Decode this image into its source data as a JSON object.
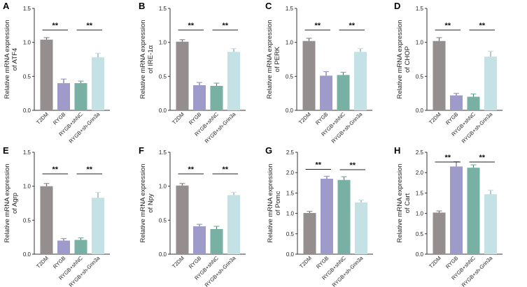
{
  "figure": {
    "categories": [
      "T2DM",
      "RYGB",
      "RYGB+shNC",
      "RYGB+sh-Grin3a"
    ],
    "colors": [
      "#958e8e",
      "#9e9bcb",
      "#78b0a4",
      "#c4e2e5"
    ],
    "significance_label": "**"
  },
  "chart_data": [
    {
      "panel": "A",
      "type": "bar",
      "ylabel": [
        "Relative mRNA expression",
        "of ATF4"
      ],
      "ylim": [
        0,
        1.5
      ],
      "yticks": [
        "0.0",
        "0.5",
        "1.0",
        "1.5"
      ],
      "values": [
        1.04,
        0.4,
        0.4,
        0.78
      ],
      "errors": [
        0.03,
        0.06,
        0.03,
        0.06
      ]
    },
    {
      "panel": "B",
      "type": "bar",
      "ylabel": [
        "Relative mRNA expression",
        "of IRE-1α"
      ],
      "ylim": [
        0,
        1.5
      ],
      "yticks": [
        "0.0",
        "0.5",
        "1.0",
        "1.5"
      ],
      "values": [
        1.01,
        0.37,
        0.36,
        0.86
      ],
      "errors": [
        0.03,
        0.04,
        0.04,
        0.05
      ]
    },
    {
      "panel": "C",
      "type": "bar",
      "ylabel": [
        "Relative mRNA expression",
        "of PERK"
      ],
      "ylim": [
        0,
        1.5
      ],
      "yticks": [
        "0.0",
        "0.5",
        "1.0",
        "1.5"
      ],
      "values": [
        1.02,
        0.51,
        0.52,
        0.86
      ],
      "errors": [
        0.04,
        0.06,
        0.04,
        0.05
      ]
    },
    {
      "panel": "D",
      "type": "bar",
      "ylabel": [
        "Relative mRNA expression",
        "of CHOP"
      ],
      "ylim": [
        0,
        1.5
      ],
      "yticks": [
        "0.0",
        "0.5",
        "1.0",
        "1.5"
      ],
      "values": [
        1.02,
        0.22,
        0.2,
        0.79
      ],
      "errors": [
        0.05,
        0.03,
        0.04,
        0.08
      ]
    },
    {
      "panel": "E",
      "type": "bar",
      "ylabel": [
        "Relative mRNA expression",
        "of Agrp"
      ],
      "ylim": [
        0,
        1.5
      ],
      "yticks": [
        "0.0",
        "0.5",
        "1.0",
        "1.5"
      ],
      "values": [
        1.0,
        0.2,
        0.21,
        0.83
      ],
      "errors": [
        0.04,
        0.03,
        0.03,
        0.08
      ]
    },
    {
      "panel": "F",
      "type": "bar",
      "ylabel": [
        "Relative mRNA expression",
        "of Npy"
      ],
      "ylim": [
        0,
        1.5
      ],
      "yticks": [
        "0.0",
        "0.5",
        "1.0",
        "1.5"
      ],
      "values": [
        1.01,
        0.41,
        0.37,
        0.87
      ],
      "errors": [
        0.03,
        0.03,
        0.04,
        0.04
      ]
    },
    {
      "panel": "G",
      "type": "bar",
      "ylabel": [
        "Relative mRNA expression",
        "of Pomc"
      ],
      "ylim": [
        0,
        2.5
      ],
      "yticks": [
        "0.0",
        "0.5",
        "1.0",
        "1.5",
        "2.0",
        "2.5"
      ],
      "values": [
        1.01,
        1.85,
        1.82,
        1.27
      ],
      "errors": [
        0.04,
        0.06,
        0.08,
        0.06
      ]
    },
    {
      "panel": "H",
      "type": "bar",
      "ylabel": [
        "Relative mRNA expression",
        "of Cart"
      ],
      "ylim": [
        0,
        2.5
      ],
      "yticks": [
        "0.0",
        "0.5",
        "1.0",
        "1.5",
        "2.0",
        "2.5"
      ],
      "values": [
        1.02,
        2.15,
        2.12,
        1.47
      ],
      "errors": [
        0.04,
        0.12,
        0.07,
        0.1
      ]
    }
  ]
}
